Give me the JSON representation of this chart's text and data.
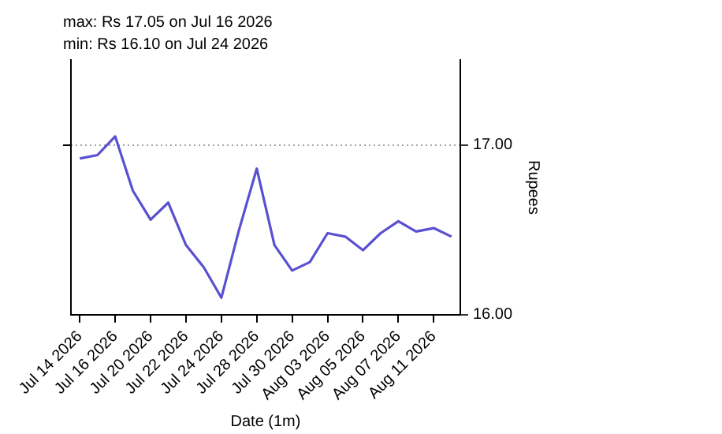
{
  "chart_data": {
    "type": "line",
    "title": "max: Rs 17.05 on Jul 16 2026",
    "subtitle": "min: Rs 16.10 on Jul 24 2026",
    "xlabel": "Date (1m)",
    "ylabel": "Rupees",
    "categories": [
      "Jul 14 2026",
      null,
      "Jul 16 2026",
      null,
      "Jul 20 2026",
      null,
      "Jul 22 2026",
      null,
      "Jul 24 2026",
      null,
      "Jul 28 2026",
      null,
      "Jul 30 2026",
      null,
      "Aug 03 2026",
      null,
      "Aug 05 2026",
      null,
      "Aug 07 2026",
      null,
      "Aug 11 2026",
      null
    ],
    "series": [
      {
        "color": "#5a50d2",
        "values": [
          16.92,
          16.94,
          17.05,
          16.73,
          16.56,
          16.66,
          16.41,
          16.28,
          16.1,
          16.5,
          16.86,
          16.41,
          16.26,
          16.31,
          16.48,
          16.46,
          16.38,
          16.48,
          16.55,
          16.49,
          16.51,
          16.46
        ]
      }
    ],
    "ylim": [
      16,
      17.5
    ],
    "yticks": [
      {
        "value": 16,
        "label": "16.00"
      },
      {
        "value": 17,
        "label": "17.00"
      }
    ],
    "grid": "y",
    "legend": false,
    "marker": "none",
    "line_style": "solid"
  }
}
